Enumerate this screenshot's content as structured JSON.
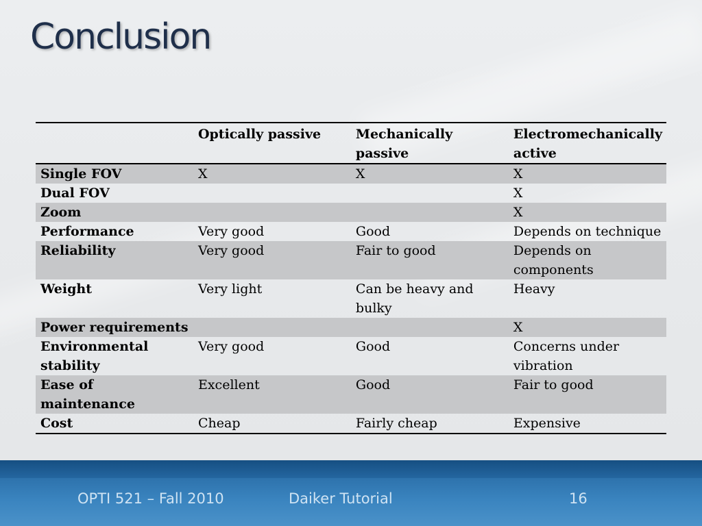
{
  "slide": {
    "title": "Conclusion"
  },
  "table": {
    "headers": [
      "",
      "Optically passive",
      "Mechanically passive",
      "Electromechanically active"
    ],
    "rows": [
      {
        "label": "Single FOV",
        "cells": [
          "X",
          "X",
          "X"
        ],
        "shaded": true
      },
      {
        "label": "Dual FOV",
        "cells": [
          "",
          "",
          "X"
        ],
        "shaded": false
      },
      {
        "label": "Zoom",
        "cells": [
          "",
          "",
          "X"
        ],
        "shaded": true
      },
      {
        "label": "Performance",
        "cells": [
          "Very good",
          "Good",
          "Depends on technique"
        ],
        "shaded": false
      },
      {
        "label": "Reliability",
        "cells": [
          "Very good",
          "Fair to good",
          "Depends on components"
        ],
        "shaded": true
      },
      {
        "label": "Weight",
        "cells": [
          "Very light",
          "Can be heavy and bulky",
          "Heavy"
        ],
        "shaded": false
      },
      {
        "label": "Power requirements",
        "cells": [
          "",
          "",
          "X"
        ],
        "shaded": true
      },
      {
        "label": "Environmental stability",
        "cells": [
          "Very good",
          "Good",
          "Concerns under vibration"
        ],
        "shaded": false
      },
      {
        "label": "Ease of maintenance",
        "cells": [
          "Excellent",
          "Good",
          "Fair to good"
        ],
        "shaded": true
      },
      {
        "label": "Cost",
        "cells": [
          "Cheap",
          "Fairly cheap",
          "Expensive"
        ],
        "shaded": false
      }
    ]
  },
  "footer": {
    "course": "OPTI 521 – Fall 2010",
    "presenter": "Daiker Tutorial",
    "page_number": "16"
  }
}
